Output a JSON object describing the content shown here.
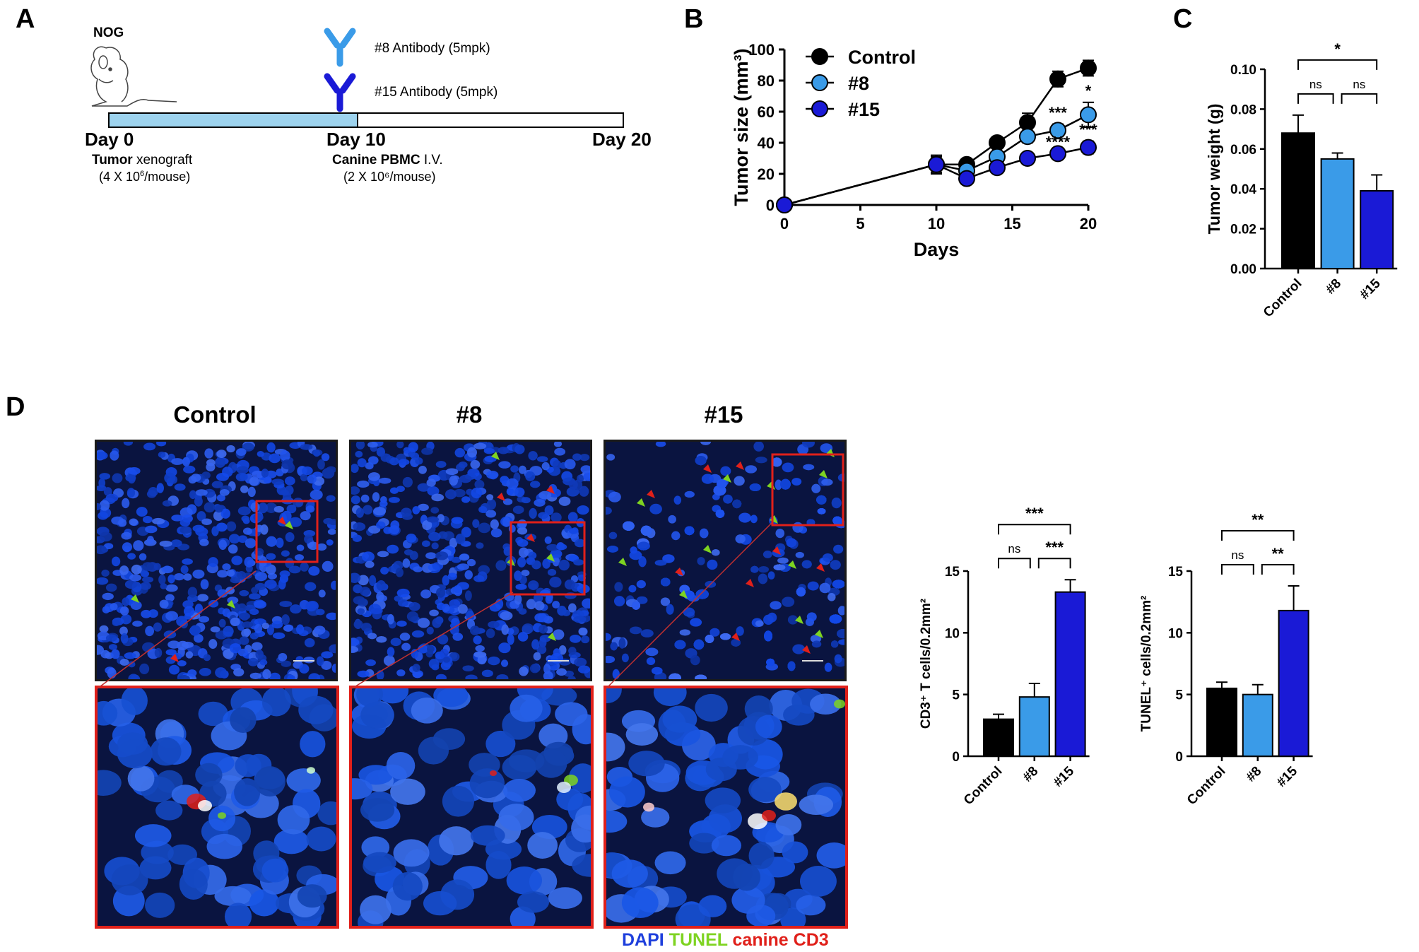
{
  "panels": {
    "a": "A",
    "b": "B",
    "c": "C",
    "d": "D"
  },
  "schematic": {
    "mouse_label": "NOG",
    "antibody8": "#8 Antibody (5mpk)",
    "antibody15": "#15 Antibody (5mpk)",
    "day0": "Day 0",
    "day10": "Day 10",
    "day20": "Day 20",
    "tumor_bold": "Tumor",
    "tumor_rest": " xenograft",
    "tumor_dose_pre": "(4 X 10",
    "tumor_dose_sup": "6",
    "tumor_dose_post": "/mouse)",
    "pbmc_bold": "Canine PBMC",
    "pbmc_rest": " I.V.",
    "pbmc_dose": "(2 X 10⁶/mouse)",
    "colors": {
      "bar_fill": "#9dd3ee",
      "ab8": "#3a9be8",
      "ab15": "#1a1ad6"
    }
  },
  "microscopy": {
    "titles": [
      "Control",
      "#8",
      "#15"
    ],
    "legend": {
      "dapi": "DAPI",
      "tunel": "TUNEL",
      "cd3": "canine CD3"
    },
    "legend_colors": {
      "dapi": "#1e3fdc",
      "tunel": "#7ed321",
      "cd3": "#e0201a"
    }
  },
  "chart_data": [
    {
      "id": "B",
      "type": "line",
      "title": "",
      "xlabel": "Days",
      "ylabel": "Tumor size (mm³)",
      "xlim": [
        0,
        20
      ],
      "ylim": [
        0,
        100
      ],
      "xticks": [
        "0",
        "5",
        "10",
        "15",
        "20"
      ],
      "yticks": [
        "0",
        "20",
        "40",
        "60",
        "80",
        "100"
      ],
      "legend_position": "top-left",
      "series": [
        {
          "name": "Control",
          "color": "#000000",
          "x": [
            0,
            10,
            12,
            14,
            16,
            18,
            20
          ],
          "values": [
            0,
            26,
            26,
            40,
            53,
            81,
            88
          ],
          "errors": [
            0,
            6,
            2,
            2,
            6,
            5,
            5
          ]
        },
        {
          "name": "#8",
          "color": "#3a9be8",
          "x": [
            0,
            10,
            12,
            14,
            16,
            18,
            20
          ],
          "values": [
            0,
            26,
            22,
            31,
            44,
            48,
            58
          ],
          "errors": [
            0,
            5,
            2,
            2,
            4,
            4,
            8
          ]
        },
        {
          "name": "#15",
          "color": "#1a1ad6",
          "x": [
            0,
            10,
            12,
            14,
            16,
            18,
            20
          ],
          "values": [
            0,
            26,
            17,
            24,
            30,
            33,
            37
          ],
          "errors": [
            0,
            5,
            2,
            2,
            2,
            2,
            4
          ]
        }
      ],
      "annotations": [
        {
          "text": "*",
          "x": 20,
          "y": 70
        },
        {
          "text": "***",
          "x": 18,
          "y": 56
        },
        {
          "text": "***",
          "x": 20,
          "y": 45
        },
        {
          "text": "****",
          "x": 18,
          "y": 37
        }
      ]
    },
    {
      "id": "C",
      "type": "bar",
      "xlabel": "",
      "ylabel": "Tumor weight (g)",
      "ylim": [
        0,
        0.1
      ],
      "yticks": [
        "0.00",
        "0.02",
        "0.04",
        "0.06",
        "0.08",
        "0.10"
      ],
      "categories": [
        "Control",
        "#8",
        "#15"
      ],
      "values": [
        0.068,
        0.055,
        0.039
      ],
      "errors": [
        0.009,
        0.003,
        0.008
      ],
      "colors": [
        "#000000",
        "#3a9be8",
        "#1a1ad6"
      ],
      "significance": [
        {
          "pair": [
            0,
            2
          ],
          "text": "*"
        },
        {
          "pair": [
            0,
            1
          ],
          "text": "ns"
        },
        {
          "pair": [
            1,
            2
          ],
          "text": "ns"
        }
      ]
    },
    {
      "id": "D1",
      "type": "bar",
      "ylabel": "CD3⁺ T cells/0.2mm²",
      "ylim": [
        0,
        15
      ],
      "yticks": [
        "0",
        "5",
        "10",
        "15"
      ],
      "categories": [
        "Control",
        "#8",
        "#15"
      ],
      "values": [
        3.0,
        4.8,
        13.3
      ],
      "errors": [
        0.4,
        1.1,
        1.0
      ],
      "colors": [
        "#000000",
        "#3a9be8",
        "#1a1ad6"
      ],
      "significance": [
        {
          "pair": [
            0,
            2
          ],
          "text": "***"
        },
        {
          "pair": [
            0,
            1
          ],
          "text": "ns"
        },
        {
          "pair": [
            1,
            2
          ],
          "text": "***"
        }
      ]
    },
    {
      "id": "D2",
      "type": "bar",
      "ylabel": "TUNEL⁺ cells/0.2mm²",
      "ylim": [
        0,
        15
      ],
      "yticks": [
        "0",
        "5",
        "10",
        "15"
      ],
      "categories": [
        "Control",
        "#8",
        "#15"
      ],
      "values": [
        5.5,
        5.0,
        11.8
      ],
      "errors": [
        0.5,
        0.8,
        2.0
      ],
      "colors": [
        "#000000",
        "#3a9be8",
        "#1a1ad6"
      ],
      "significance": [
        {
          "pair": [
            0,
            2
          ],
          "text": "**"
        },
        {
          "pair": [
            0,
            1
          ],
          "text": "ns"
        },
        {
          "pair": [
            1,
            2
          ],
          "text": "**"
        }
      ]
    }
  ]
}
